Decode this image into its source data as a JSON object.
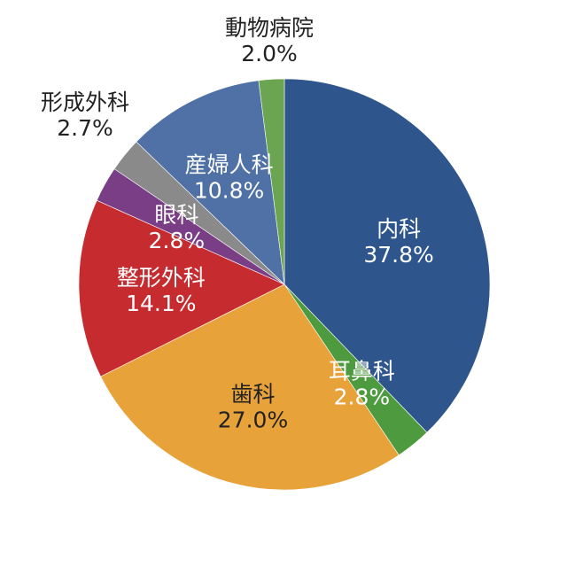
{
  "chart_data": {
    "type": "pie",
    "title": "",
    "start": "12 o'clock, clockwise",
    "slices": [
      {
        "label": "内科",
        "value": 37.8,
        "display": "37.8%",
        "color": "#2e568c",
        "text_color": "#ffffff",
        "label_pos": "inside"
      },
      {
        "label": "耳鼻科",
        "value": 2.8,
        "display": "2.8%",
        "color": "#4e9a3f",
        "text_color": "#ffffff",
        "label_pos": "inside"
      },
      {
        "label": "歯科",
        "value": 27.0,
        "display": "27.0%",
        "color": "#e8a23a",
        "text_color": "#222222",
        "label_pos": "inside"
      },
      {
        "label": "整形外科",
        "value": 14.1,
        "display": "14.1%",
        "color": "#c62b30",
        "text_color": "#ffffff",
        "label_pos": "inside"
      },
      {
        "label": "眼科",
        "value": 2.8,
        "display": "2.8%",
        "color": "#7a3e86",
        "text_color": "#ffffff",
        "label_pos": "inside"
      },
      {
        "label": "形成外科",
        "value": 2.7,
        "display": "2.7%",
        "color": "#8a8a8a",
        "text_color": "#222222",
        "label_pos": "outside"
      },
      {
        "label": "産婦人科",
        "value": 10.8,
        "display": "10.8%",
        "color": "#4f71a6",
        "text_color": "#ffffff",
        "label_pos": "inside"
      },
      {
        "label": "動物病院",
        "value": 2.0,
        "display": "2.0%",
        "color": "#6ba552",
        "text_color": "#222222",
        "label_pos": "outside"
      }
    ]
  }
}
